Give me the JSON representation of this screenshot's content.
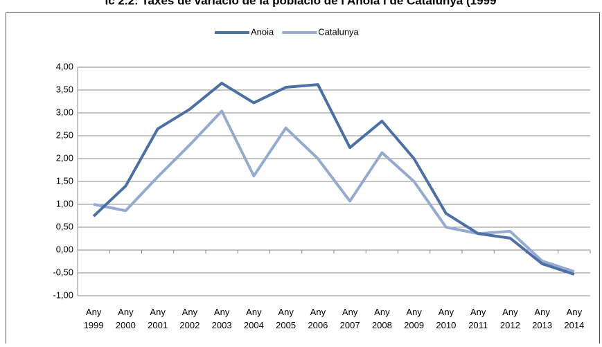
{
  "chart_data": {
    "type": "line",
    "title": "ic 2.2: Taxes de variació de la població de l'Anoia i de Catalunya (1999",
    "categories": [
      "Any 1999",
      "Any 2000",
      "Any 2001",
      "Any 2002",
      "Any 2003",
      "Any 2004",
      "Any 2005",
      "Any 2006",
      "Any 2007",
      "Any 2008",
      "Any 2009",
      "Any 2010",
      "Any 2011",
      "Any 2012",
      "Any 2013",
      "Any 2014"
    ],
    "series": [
      {
        "name": "Anoia",
        "color": "#4a70a6",
        "values": [
          0.74,
          1.4,
          2.65,
          3.08,
          3.65,
          3.22,
          3.56,
          3.62,
          2.24,
          2.82,
          2.0,
          0.8,
          0.36,
          0.26,
          -0.3,
          -0.53
        ]
      },
      {
        "name": "Catalunya",
        "color": "#94aad0",
        "values": [
          1.0,
          0.86,
          1.6,
          2.3,
          3.04,
          1.62,
          2.67,
          2.0,
          1.07,
          2.13,
          1.5,
          0.5,
          0.36,
          0.41,
          -0.24,
          -0.47
        ]
      }
    ],
    "ylim": [
      -1,
      4
    ],
    "yticks": [
      {
        "value": -1,
        "label": "-1,00"
      },
      {
        "value": -0.5,
        "label": "-0,50"
      },
      {
        "value": 0,
        "label": "0,00"
      },
      {
        "value": 0.5,
        "label": "0,50"
      },
      {
        "value": 1,
        "label": "1,00"
      },
      {
        "value": 1.5,
        "label": "1,50"
      },
      {
        "value": 2,
        "label": "2,00"
      },
      {
        "value": 2.5,
        "label": "2,50"
      },
      {
        "value": 3,
        "label": "3,00"
      },
      {
        "value": 3.5,
        "label": "3,50"
      },
      {
        "value": 4,
        "label": "4,00"
      }
    ],
    "grid": true,
    "legend": "top"
  }
}
